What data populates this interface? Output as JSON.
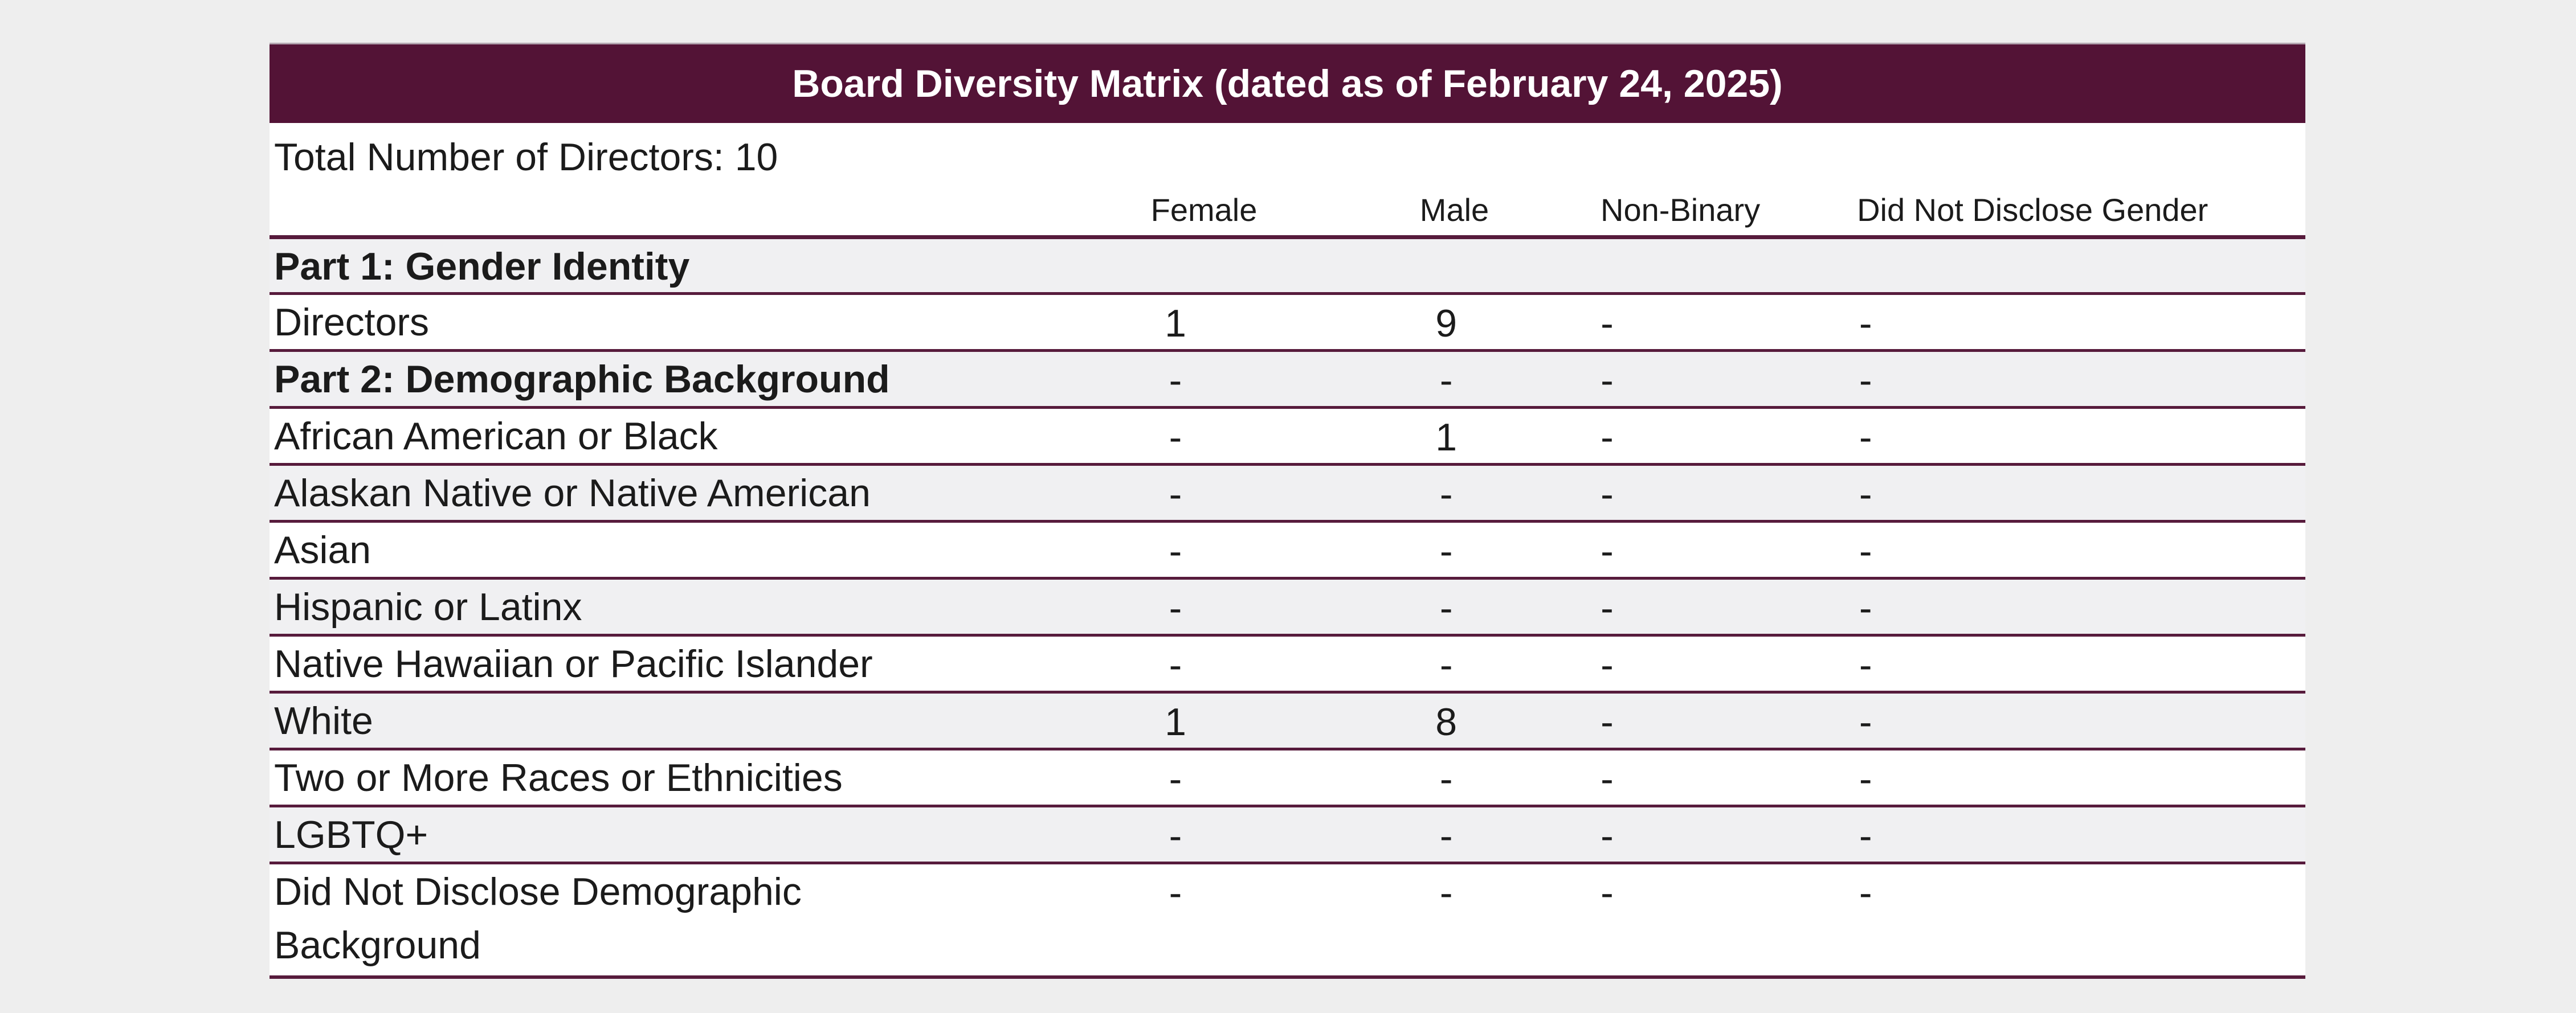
{
  "theme": {
    "maroon": "#531336",
    "line": "#571B3C",
    "hairline": "#B3A6B0",
    "row_alt": "#F0F0F2",
    "page_bg": "#EEEEEE",
    "text": "#1B1B1B"
  },
  "table": {
    "title": "Board Diversity Matrix (dated as of February 24, 2025)",
    "subtitle": "Total Number of Directors: 10",
    "columns": [
      "Female",
      "Male",
      "Non-Binary",
      "Did Not Disclose Gender"
    ],
    "rows": [
      {
        "label": "Part 1: Gender Identity",
        "bold": true,
        "shaded": true,
        "values": [
          "",
          "",
          "",
          ""
        ]
      },
      {
        "label": "Directors",
        "bold": false,
        "shaded": false,
        "values": [
          "1",
          "9",
          "-",
          "-"
        ]
      },
      {
        "label": "Part 2: Demographic Background",
        "bold": true,
        "shaded": true,
        "values": [
          "-",
          "-",
          "-",
          "-"
        ]
      },
      {
        "label": "African American or Black",
        "bold": false,
        "shaded": false,
        "values": [
          "-",
          "1",
          "-",
          "-"
        ]
      },
      {
        "label": "Alaskan Native or Native American",
        "bold": false,
        "shaded": true,
        "values": [
          "-",
          "-",
          "-",
          "-"
        ]
      },
      {
        "label": "Asian",
        "bold": false,
        "shaded": false,
        "values": [
          "-",
          "-",
          "-",
          "-"
        ]
      },
      {
        "label": "Hispanic or Latinx",
        "bold": false,
        "shaded": true,
        "values": [
          "-",
          "-",
          "-",
          "-"
        ]
      },
      {
        "label": "Native Hawaiian or Pacific Islander",
        "bold": false,
        "shaded": false,
        "values": [
          "-",
          "-",
          "-",
          "-"
        ]
      },
      {
        "label": "White",
        "bold": false,
        "shaded": true,
        "values": [
          "1",
          "8",
          "-",
          "-"
        ]
      },
      {
        "label": "Two or More Races or Ethnicities",
        "bold": false,
        "shaded": false,
        "values": [
          "-",
          "-",
          "-",
          "-"
        ]
      },
      {
        "label": "LGBTQ+",
        "bold": false,
        "shaded": true,
        "values": [
          "-",
          "-",
          "-",
          "-"
        ]
      },
      {
        "label": "Did Not Disclose Demographic Background",
        "bold": false,
        "shaded": false,
        "values": [
          "-",
          "-",
          "-",
          "-"
        ]
      }
    ]
  }
}
